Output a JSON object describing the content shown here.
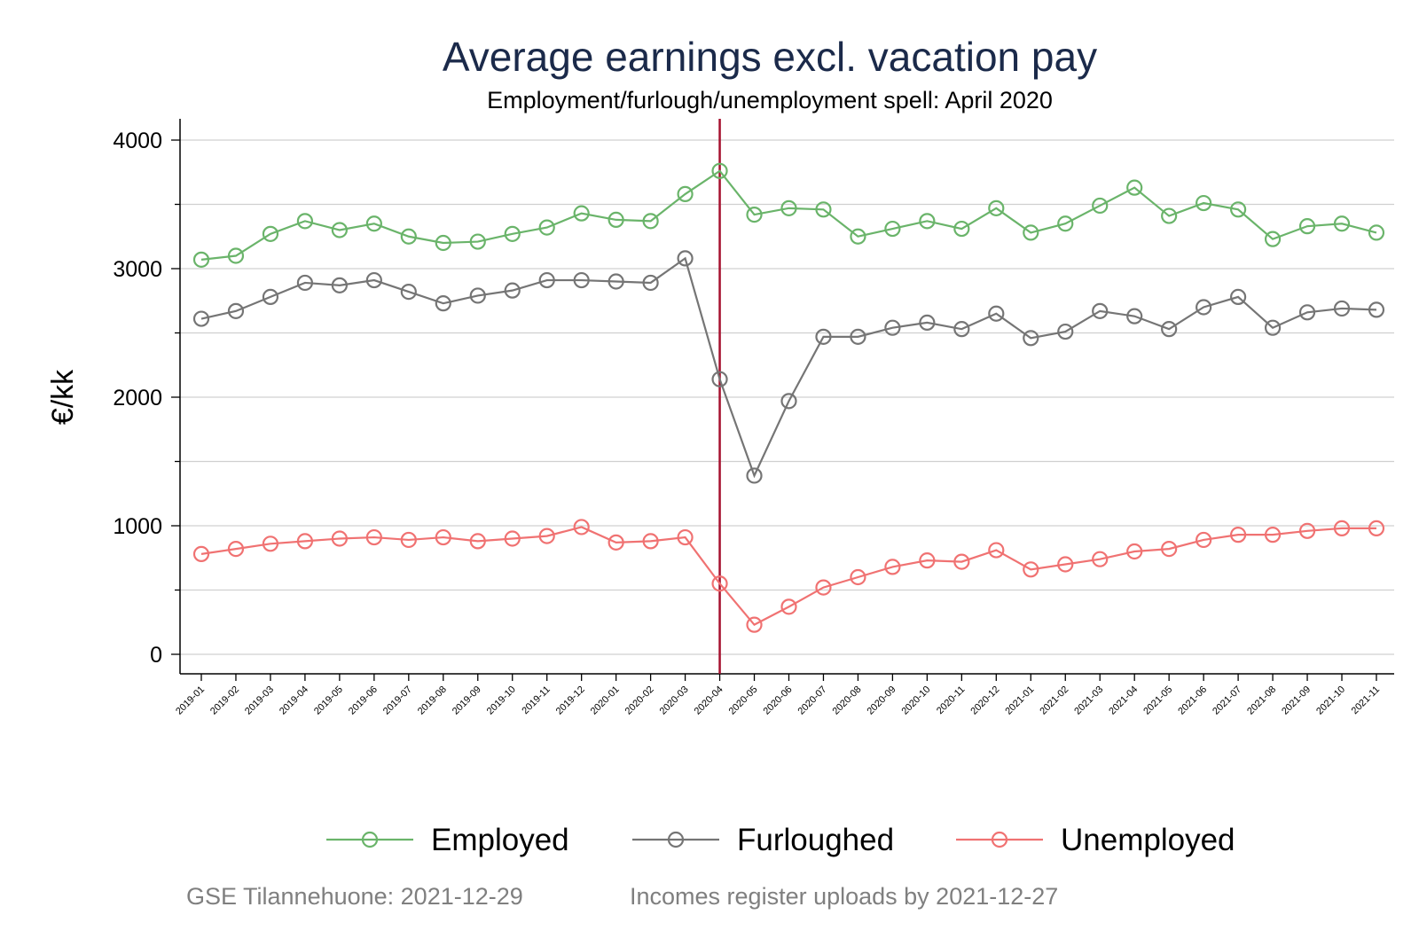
{
  "chart_data": {
    "type": "line",
    "title": "Average earnings excl. vacation pay",
    "subtitle": "Employment/furlough/unemployment spell: April 2020",
    "ylabel": "€/kk",
    "xlabel": "",
    "ylim": [
      0,
      4000
    ],
    "yticks": [
      0,
      1000,
      2000,
      3000,
      4000
    ],
    "grid": true,
    "legend_position": "bottom",
    "reference_line": {
      "x": "2020-04",
      "color": "#a50f2d"
    },
    "categories": [
      "2019-01",
      "2019-02",
      "2019-03",
      "2019-04",
      "2019-05",
      "2019-06",
      "2019-07",
      "2019-08",
      "2019-09",
      "2019-10",
      "2019-11",
      "2019-12",
      "2020-01",
      "2020-02",
      "2020-03",
      "2020-04",
      "2020-05",
      "2020-06",
      "2020-07",
      "2020-08",
      "2020-09",
      "2020-10",
      "2020-11",
      "2020-12",
      "2021-01",
      "2021-02",
      "2021-03",
      "2021-04",
      "2021-05",
      "2021-06",
      "2021-07",
      "2021-08",
      "2021-09",
      "2021-10",
      "2021-11"
    ],
    "series": [
      {
        "name": "Employed",
        "color": "#6ab46a",
        "values": [
          3070,
          3100,
          3270,
          3370,
          3300,
          3350,
          3250,
          3200,
          3210,
          3270,
          3320,
          3430,
          3380,
          3370,
          3580,
          3760,
          3420,
          3470,
          3460,
          3250,
          3310,
          3370,
          3310,
          3470,
          3280,
          3350,
          3490,
          3630,
          3410,
          3510,
          3460,
          3230,
          3330,
          3350,
          3280
        ]
      },
      {
        "name": "Furloughed",
        "color": "#757575",
        "values": [
          2610,
          2670,
          2780,
          2890,
          2870,
          2910,
          2820,
          2730,
          2790,
          2830,
          2910,
          2910,
          2900,
          2890,
          3080,
          2140,
          1390,
          1970,
          2470,
          2470,
          2540,
          2580,
          2530,
          2650,
          2460,
          2510,
          2670,
          2630,
          2530,
          2700,
          2780,
          2540,
          2660,
          2690,
          2680
        ]
      },
      {
        "name": "Unemployed",
        "color": "#f07272",
        "values": [
          780,
          820,
          860,
          880,
          900,
          910,
          890,
          910,
          880,
          900,
          920,
          990,
          870,
          880,
          910,
          550,
          230,
          370,
          520,
          600,
          680,
          730,
          720,
          810,
          660,
          700,
          740,
          800,
          820,
          890,
          930,
          930,
          960,
          980,
          980
        ]
      }
    ]
  },
  "footer": {
    "left": "GSE Tilannehuone: 2021-12-29",
    "right": "Incomes register uploads by 2021-12-27"
  }
}
